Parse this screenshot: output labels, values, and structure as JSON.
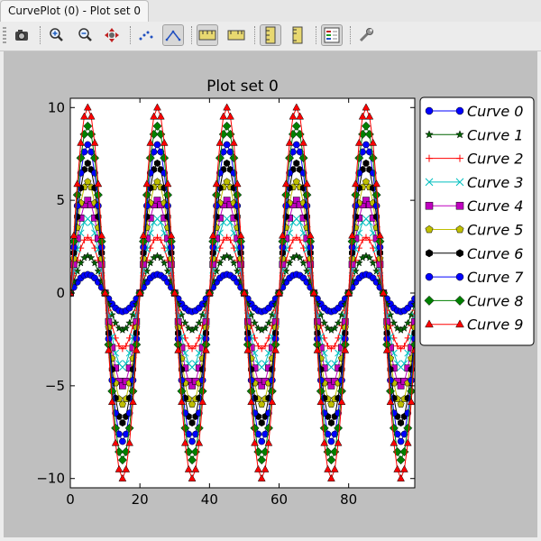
{
  "window": {
    "tab_title": "CurvePlot (0) - Plot set 0"
  },
  "toolbar": {
    "buttons": [
      {
        "id": "export",
        "name": "export-image-icon",
        "active": false
      },
      {
        "id": "zoom-in",
        "name": "zoom-in-icon",
        "active": false
      },
      {
        "id": "zoom-out",
        "name": "zoom-out-icon",
        "active": false
      },
      {
        "id": "pan",
        "name": "pan-move-icon",
        "active": false
      },
      {
        "id": "points",
        "name": "points-mode-icon",
        "active": false
      },
      {
        "id": "lines",
        "name": "lines-mode-icon",
        "active": true
      },
      {
        "id": "lin-x",
        "name": "linear-x-axis-icon",
        "active": true
      },
      {
        "id": "log-x",
        "name": "log-x-axis-icon",
        "active": false
      },
      {
        "id": "lin-y",
        "name": "linear-y-axis-icon",
        "active": true
      },
      {
        "id": "log-y",
        "name": "log-y-axis-icon",
        "active": false
      },
      {
        "id": "legend",
        "name": "legend-toggle-icon",
        "active": true
      },
      {
        "id": "settings",
        "name": "settings-wrench-icon",
        "active": false
      }
    ]
  },
  "chart_data": {
    "type": "line",
    "title": "Plot set 0",
    "xlabel": "",
    "ylabel": "",
    "xlim": [
      0,
      99
    ],
    "ylim": [
      -10.5,
      10.5
    ],
    "xticks": [
      0,
      20,
      40,
      60,
      80
    ],
    "yticks": [
      -10,
      -5,
      0,
      5,
      10
    ],
    "ytick_labels": [
      "−10",
      "−5",
      "0",
      "5",
      "10"
    ],
    "x_step": 1,
    "x_count": 100,
    "wave": {
      "function": "sin",
      "period": 20,
      "amplitude_step": 1
    },
    "grid": false,
    "legend_position": "right, outside plot, top",
    "series": [
      {
        "name": "Curve 0",
        "amplitude": 1,
        "color": "#0000ff",
        "marker": "circle"
      },
      {
        "name": "Curve 1",
        "amplitude": 2,
        "color": "#006400",
        "marker": "star"
      },
      {
        "name": "Curve 2",
        "amplitude": 3,
        "color": "#ff0000",
        "marker": "plus"
      },
      {
        "name": "Curve 3",
        "amplitude": 4,
        "color": "#00bfbf",
        "marker": "x"
      },
      {
        "name": "Curve 4",
        "amplitude": 5,
        "color": "#bf00bf",
        "marker": "square"
      },
      {
        "name": "Curve 5",
        "amplitude": 6,
        "color": "#bfbf00",
        "marker": "pentagon"
      },
      {
        "name": "Curve 6",
        "amplitude": 7,
        "color": "#000000",
        "marker": "hexagon"
      },
      {
        "name": "Curve 7",
        "amplitude": 8,
        "color": "#0000ff",
        "marker": "circle"
      },
      {
        "name": "Curve 8",
        "amplitude": 9,
        "color": "#008000",
        "marker": "diamond"
      },
      {
        "name": "Curve 9",
        "amplitude": 10,
        "color": "#ff0000",
        "marker": "triangle"
      }
    ]
  }
}
